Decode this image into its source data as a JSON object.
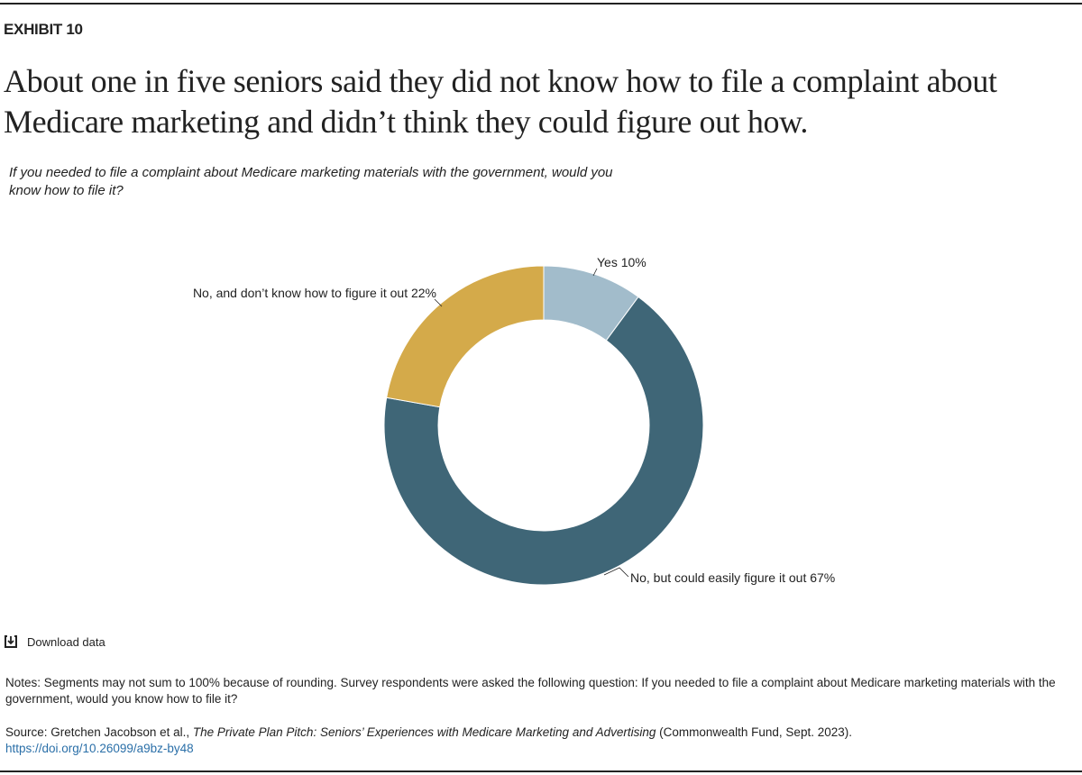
{
  "exhibit": "EXHIBIT 10",
  "title": "About one in five seniors said they did not know how to file a complaint about Medicare marketing and didn’t think they could figure out how.",
  "subtitle": "If you needed to file a complaint about Medicare marketing materials with the government, would you know how to file it?",
  "download_label": "Download data",
  "notes": "Notes: Segments may not sum to 100% because of rounding. Survey respondents were asked the following question: If you needed to file a complaint about Medicare marketing materials with the government, would you know how to file it?",
  "source": {
    "prefix": "Source: Gretchen Jacobson et al., ",
    "italic": "The Private Plan Pitch: Seniors’ Experiences with Medicare Marketing and Advertising",
    "suffix": " (Commonwealth Fund, Sept. 2023).",
    "link": "https://doi.org/10.26099/a9bz-by48"
  },
  "chart_data": {
    "type": "pie",
    "donut": true,
    "start": "top, clockwise",
    "slices": [
      {
        "label": "Yes 10%",
        "value": 10,
        "color": "#a2bccb"
      },
      {
        "label": "No, but could easily figure it out 67%",
        "value": 67,
        "color": "#3f6677"
      },
      {
        "label": "No, and don’t know how to figure it out 22%",
        "value": 22,
        "color": "#d4aa4a"
      }
    ]
  }
}
